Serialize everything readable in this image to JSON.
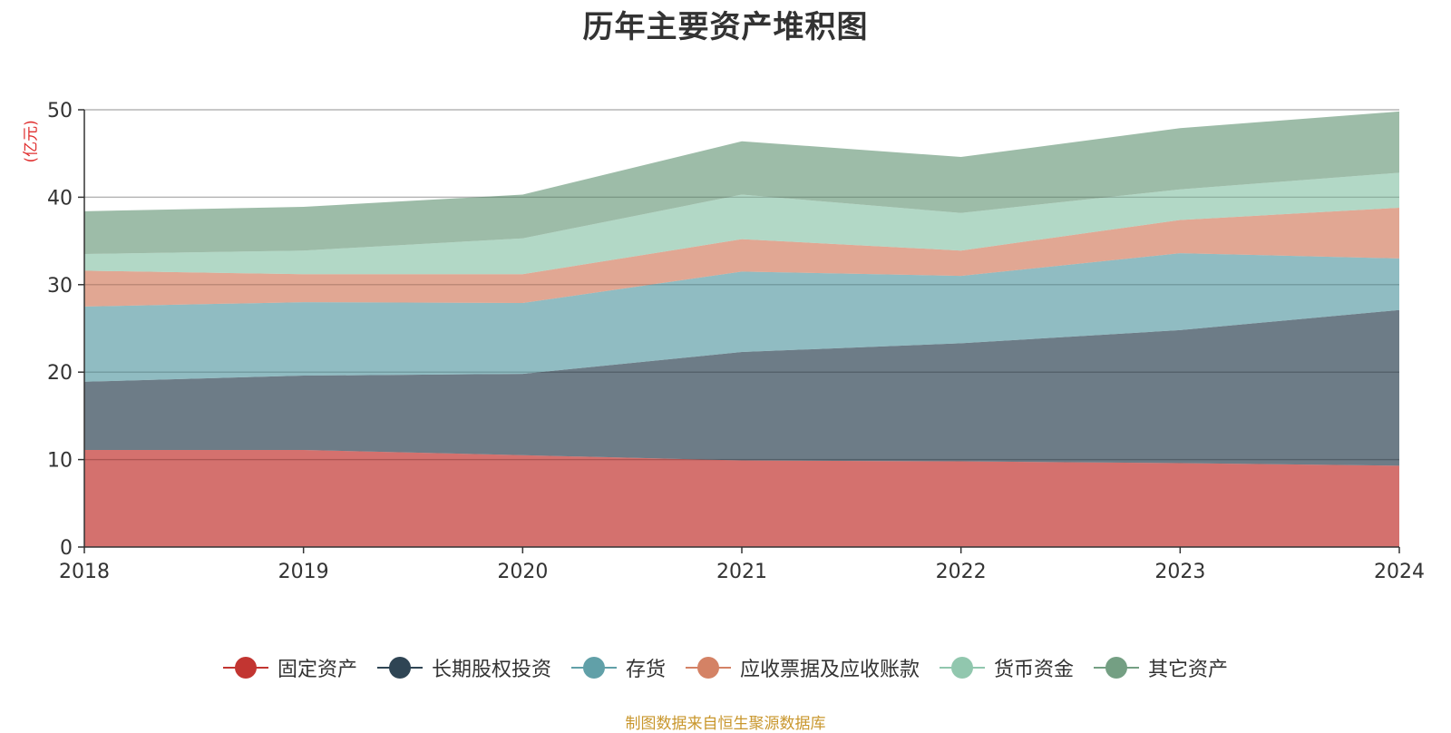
{
  "title": "历年主要资产堆积图",
  "unit_label": "(亿元)",
  "source_note": "制图数据来自恒生聚源数据库",
  "chart_data": {
    "type": "area",
    "stacked": true,
    "title": "历年主要资产堆积图",
    "ylabel": "(亿元)",
    "x": [
      "2018",
      "2019",
      "2020",
      "2021",
      "2022",
      "2023",
      "2024"
    ],
    "ylim": [
      0,
      50
    ],
    "yticks": [
      0,
      10,
      20,
      30,
      40,
      50
    ],
    "grid": true,
    "legend_position": "bottom",
    "series": [
      {
        "name": "固定资产",
        "color": "#c23531",
        "values": [
          11.1,
          11.1,
          10.5,
          9.9,
          9.8,
          9.6,
          9.3
        ]
      },
      {
        "name": "长期股权投资",
        "color": "#2f4554",
        "values": [
          7.8,
          8.5,
          9.3,
          12.4,
          13.5,
          15.2,
          17.8
        ]
      },
      {
        "name": "存货",
        "color": "#61a0a8",
        "values": [
          8.6,
          8.4,
          8.1,
          9.2,
          7.7,
          8.8,
          5.9
        ]
      },
      {
        "name": "应收票据及应收账款",
        "color": "#d48265",
        "values": [
          4.1,
          3.2,
          3.3,
          3.7,
          2.9,
          3.8,
          5.8
        ]
      },
      {
        "name": "货币资金",
        "color": "#91c7ae",
        "values": [
          1.9,
          2.7,
          4.1,
          5.1,
          4.3,
          3.5,
          4.0
        ]
      },
      {
        "name": "其它资产",
        "color": "#749f83",
        "values": [
          4.9,
          5.0,
          5.0,
          6.1,
          6.4,
          7.0,
          7.0
        ]
      }
    ]
  }
}
